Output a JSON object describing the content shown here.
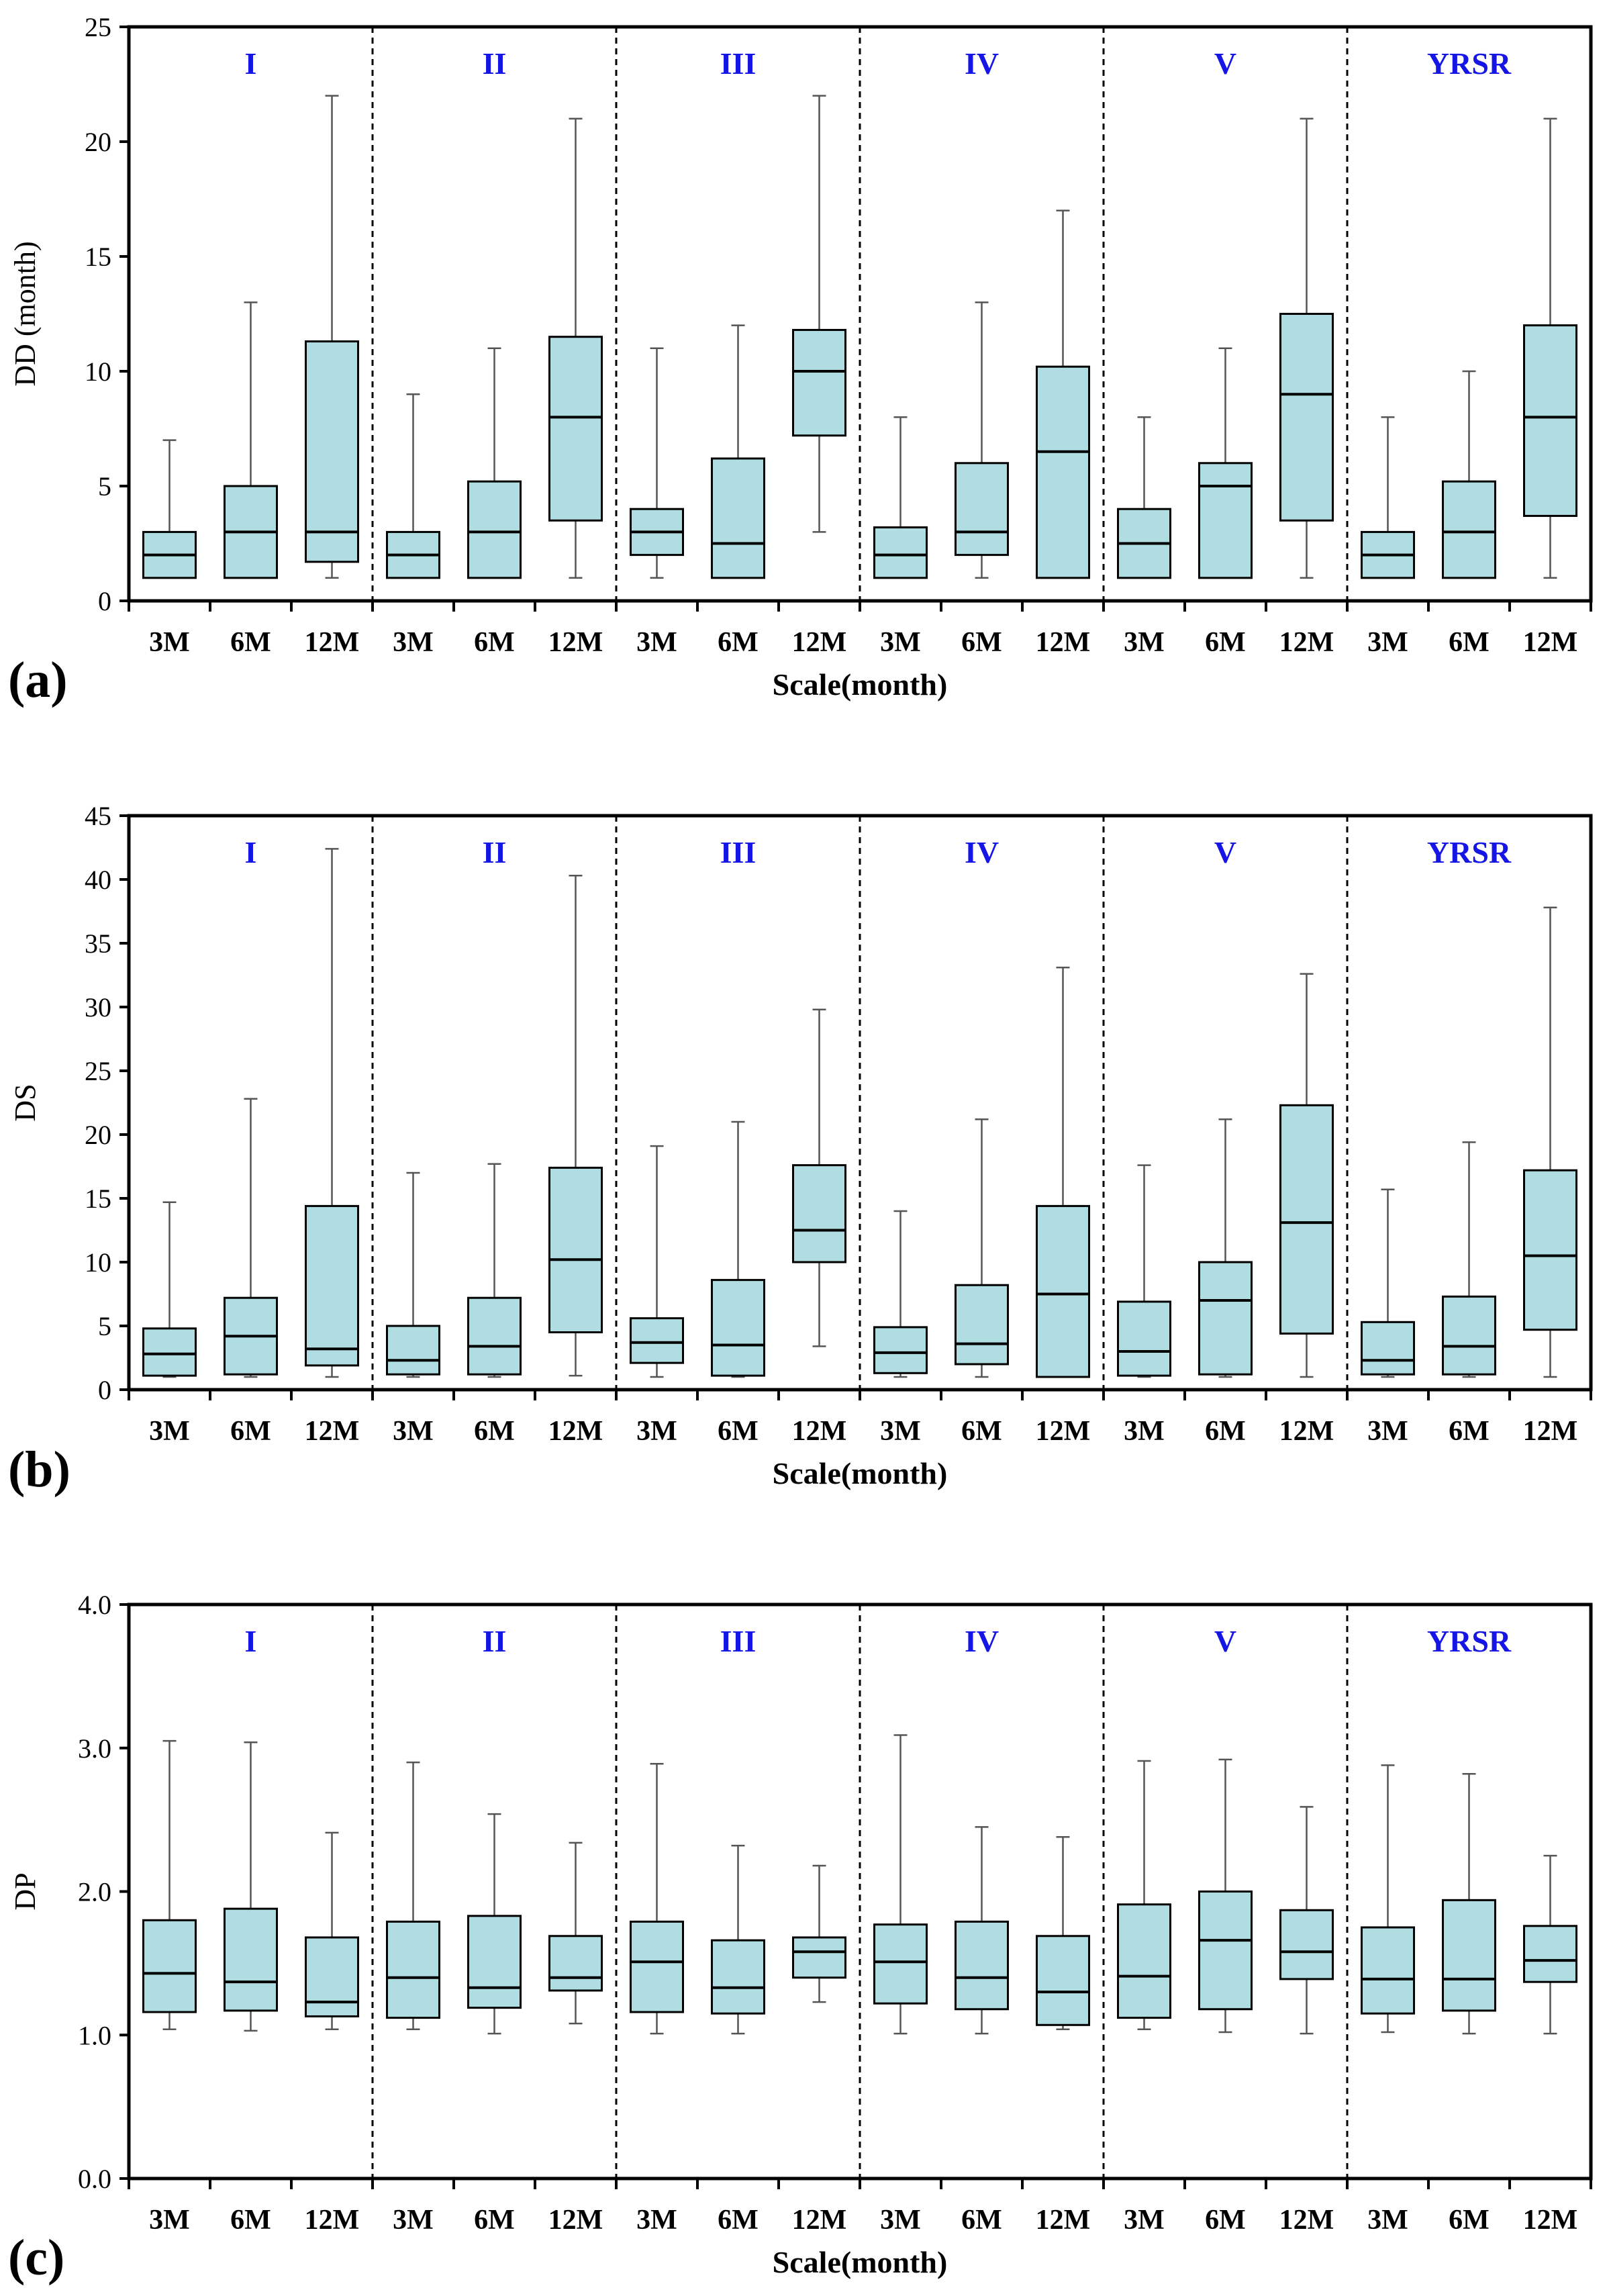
{
  "colors": {
    "box_fill": "#b0dde2",
    "region_label": "#1515e6",
    "axis": "#000000",
    "whisker": "#555555"
  },
  "chart_data": [
    {
      "type": "box",
      "panel_label": "(a)",
      "ylabel": "DD (month)",
      "xlabel": "Scale(month)",
      "ylim": [
        0,
        25
      ],
      "yticks": [
        "0",
        "5",
        "10",
        "15",
        "20",
        "25"
      ],
      "regions": [
        "I",
        "II",
        "III",
        "IV",
        "V",
        "YRSR"
      ],
      "scales": [
        "3M",
        "6M",
        "12M"
      ],
      "boxes": [
        {
          "region": "I",
          "scale": "3M",
          "min": 1,
          "q1": 1,
          "median": 2,
          "q3": 3,
          "max": 7
        },
        {
          "region": "I",
          "scale": "6M",
          "min": 1,
          "q1": 1,
          "median": 3,
          "q3": 5,
          "max": 13
        },
        {
          "region": "I",
          "scale": "12M",
          "min": 1,
          "q1": 1.7,
          "median": 3,
          "q3": 11.3,
          "max": 22
        },
        {
          "region": "II",
          "scale": "3M",
          "min": 1,
          "q1": 1,
          "median": 2,
          "q3": 3,
          "max": 9
        },
        {
          "region": "II",
          "scale": "6M",
          "min": 1,
          "q1": 1,
          "median": 3,
          "q3": 5.2,
          "max": 11
        },
        {
          "region": "II",
          "scale": "12M",
          "min": 1,
          "q1": 3.5,
          "median": 8,
          "q3": 11.5,
          "max": 21
        },
        {
          "region": "III",
          "scale": "3M",
          "min": 1,
          "q1": 2,
          "median": 3,
          "q3": 4,
          "max": 11
        },
        {
          "region": "III",
          "scale": "6M",
          "min": 1,
          "q1": 1,
          "median": 2.5,
          "q3": 6.2,
          "max": 12
        },
        {
          "region": "III",
          "scale": "12M",
          "min": 3,
          "q1": 7.2,
          "median": 10,
          "q3": 11.8,
          "max": 22
        },
        {
          "region": "IV",
          "scale": "3M",
          "min": 1,
          "q1": 1,
          "median": 2,
          "q3": 3.2,
          "max": 8
        },
        {
          "region": "IV",
          "scale": "6M",
          "min": 1,
          "q1": 2,
          "median": 3,
          "q3": 6,
          "max": 13
        },
        {
          "region": "IV",
          "scale": "12M",
          "min": 1,
          "q1": 1,
          "median": 6.5,
          "q3": 10.2,
          "max": 17
        },
        {
          "region": "V",
          "scale": "3M",
          "min": 1,
          "q1": 1,
          "median": 2.5,
          "q3": 4,
          "max": 8
        },
        {
          "region": "V",
          "scale": "6M",
          "min": 1,
          "q1": 1,
          "median": 5,
          "q3": 6,
          "max": 11
        },
        {
          "region": "V",
          "scale": "12M",
          "min": 1,
          "q1": 3.5,
          "median": 9,
          "q3": 12.5,
          "max": 21
        },
        {
          "region": "YRSR",
          "scale": "3M",
          "min": 1,
          "q1": 1,
          "median": 2,
          "q3": 3,
          "max": 8
        },
        {
          "region": "YRSR",
          "scale": "6M",
          "min": 1,
          "q1": 1,
          "median": 3,
          "q3": 5.2,
          "max": 10
        },
        {
          "region": "YRSR",
          "scale": "12M",
          "min": 1,
          "q1": 3.7,
          "median": 8,
          "q3": 12,
          "max": 21
        }
      ]
    },
    {
      "type": "box",
      "panel_label": "(b)",
      "ylabel": "DS",
      "xlabel": "Scale(month)",
      "ylim": [
        0,
        45
      ],
      "yticks": [
        "0",
        "5",
        "10",
        "15",
        "20",
        "25",
        "30",
        "35",
        "40",
        "45"
      ],
      "regions": [
        "I",
        "II",
        "III",
        "IV",
        "V",
        "YRSR"
      ],
      "scales": [
        "3M",
        "6M",
        "12M"
      ],
      "boxes": [
        {
          "region": "I",
          "scale": "3M",
          "min": 1,
          "q1": 1.1,
          "median": 2.8,
          "q3": 4.8,
          "max": 14.7
        },
        {
          "region": "I",
          "scale": "6M",
          "min": 1,
          "q1": 1.2,
          "median": 4.2,
          "q3": 7.2,
          "max": 22.8
        },
        {
          "region": "I",
          "scale": "12M",
          "min": 1,
          "q1": 1.9,
          "median": 3.2,
          "q3": 14.4,
          "max": 42.4
        },
        {
          "region": "II",
          "scale": "3M",
          "min": 1,
          "q1": 1.2,
          "median": 2.3,
          "q3": 5,
          "max": 17
        },
        {
          "region": "II",
          "scale": "6M",
          "min": 1,
          "q1": 1.2,
          "median": 3.4,
          "q3": 7.2,
          "max": 17.7
        },
        {
          "region": "II",
          "scale": "12M",
          "min": 1.1,
          "q1": 4.5,
          "median": 10.2,
          "q3": 17.4,
          "max": 40.3
        },
        {
          "region": "III",
          "scale": "3M",
          "min": 1,
          "q1": 2.1,
          "median": 3.7,
          "q3": 5.6,
          "max": 19.1
        },
        {
          "region": "III",
          "scale": "6M",
          "min": 1,
          "q1": 1.1,
          "median": 3.5,
          "q3": 8.6,
          "max": 21
        },
        {
          "region": "III",
          "scale": "12M",
          "min": 3.4,
          "q1": 10,
          "median": 12.5,
          "q3": 17.6,
          "max": 29.8
        },
        {
          "region": "IV",
          "scale": "3M",
          "min": 1,
          "q1": 1.3,
          "median": 2.9,
          "q3": 4.9,
          "max": 14
        },
        {
          "region": "IV",
          "scale": "6M",
          "min": 1,
          "q1": 2,
          "median": 3.6,
          "q3": 8.2,
          "max": 21.2
        },
        {
          "region": "IV",
          "scale": "12M",
          "min": 1,
          "q1": 1,
          "median": 7.5,
          "q3": 14.4,
          "max": 33.1
        },
        {
          "region": "V",
          "scale": "3M",
          "min": 1,
          "q1": 1.1,
          "median": 3,
          "q3": 6.9,
          "max": 17.6
        },
        {
          "region": "V",
          "scale": "6M",
          "min": 1,
          "q1": 1.2,
          "median": 7,
          "q3": 10,
          "max": 21.2
        },
        {
          "region": "V",
          "scale": "12M",
          "min": 1,
          "q1": 4.4,
          "median": 13.1,
          "q3": 22.3,
          "max": 32.6
        },
        {
          "region": "YRSR",
          "scale": "3M",
          "min": 1,
          "q1": 1.2,
          "median": 2.3,
          "q3": 5.3,
          "max": 15.7
        },
        {
          "region": "YRSR",
          "scale": "6M",
          "min": 1,
          "q1": 1.2,
          "median": 3.4,
          "q3": 7.3,
          "max": 19.4
        },
        {
          "region": "YRSR",
          "scale": "12M",
          "min": 1,
          "q1": 4.7,
          "median": 10.5,
          "q3": 17.2,
          "max": 37.8
        }
      ]
    },
    {
      "type": "box",
      "panel_label": "(c)",
      "ylabel": "DP",
      "xlabel": "Scale(month)",
      "ylim": [
        0,
        4
      ],
      "yticks": [
        "0.0",
        "1.0",
        "2.0",
        "3.0",
        "4.0"
      ],
      "regions": [
        "I",
        "II",
        "III",
        "IV",
        "V",
        "YRSR"
      ],
      "scales": [
        "3M",
        "6M",
        "12M"
      ],
      "boxes": [
        {
          "region": "I",
          "scale": "3M",
          "min": 1.04,
          "q1": 1.16,
          "median": 1.43,
          "q3": 1.8,
          "max": 3.05
        },
        {
          "region": "I",
          "scale": "6M",
          "min": 1.03,
          "q1": 1.17,
          "median": 1.37,
          "q3": 1.88,
          "max": 3.04
        },
        {
          "region": "I",
          "scale": "12M",
          "min": 1.04,
          "q1": 1.13,
          "median": 1.23,
          "q3": 1.68,
          "max": 2.41
        },
        {
          "region": "II",
          "scale": "3M",
          "min": 1.04,
          "q1": 1.12,
          "median": 1.4,
          "q3": 1.79,
          "max": 2.9
        },
        {
          "region": "II",
          "scale": "6M",
          "min": 1.01,
          "q1": 1.19,
          "median": 1.33,
          "q3": 1.83,
          "max": 2.54
        },
        {
          "region": "II",
          "scale": "12M",
          "min": 1.08,
          "q1": 1.31,
          "median": 1.4,
          "q3": 1.69,
          "max": 2.34
        },
        {
          "region": "III",
          "scale": "3M",
          "min": 1.01,
          "q1": 1.16,
          "median": 1.51,
          "q3": 1.79,
          "max": 2.89
        },
        {
          "region": "III",
          "scale": "6M",
          "min": 1.01,
          "q1": 1.15,
          "median": 1.33,
          "q3": 1.66,
          "max": 2.32
        },
        {
          "region": "III",
          "scale": "12M",
          "min": 1.23,
          "q1": 1.4,
          "median": 1.58,
          "q3": 1.68,
          "max": 2.18
        },
        {
          "region": "IV",
          "scale": "3M",
          "min": 1.01,
          "q1": 1.22,
          "median": 1.51,
          "q3": 1.77,
          "max": 3.09
        },
        {
          "region": "IV",
          "scale": "6M",
          "min": 1.01,
          "q1": 1.18,
          "median": 1.4,
          "q3": 1.79,
          "max": 2.45
        },
        {
          "region": "IV",
          "scale": "12M",
          "min": 1.04,
          "q1": 1.07,
          "median": 1.3,
          "q3": 1.69,
          "max": 2.38
        },
        {
          "region": "V",
          "scale": "3M",
          "min": 1.04,
          "q1": 1.12,
          "median": 1.41,
          "q3": 1.91,
          "max": 2.91
        },
        {
          "region": "V",
          "scale": "6M",
          "min": 1.02,
          "q1": 1.18,
          "median": 1.66,
          "q3": 2.0,
          "max": 2.92
        },
        {
          "region": "V",
          "scale": "12M",
          "min": 1.01,
          "q1": 1.39,
          "median": 1.58,
          "q3": 1.87,
          "max": 2.59
        },
        {
          "region": "YRSR",
          "scale": "3M",
          "min": 1.02,
          "q1": 1.15,
          "median": 1.39,
          "q3": 1.75,
          "max": 2.88
        },
        {
          "region": "YRSR",
          "scale": "6M",
          "min": 1.01,
          "q1": 1.17,
          "median": 1.39,
          "q3": 1.94,
          "max": 2.82
        },
        {
          "region": "YRSR",
          "scale": "12M",
          "min": 1.01,
          "q1": 1.37,
          "median": 1.52,
          "q3": 1.76,
          "max": 2.25
        }
      ]
    }
  ]
}
